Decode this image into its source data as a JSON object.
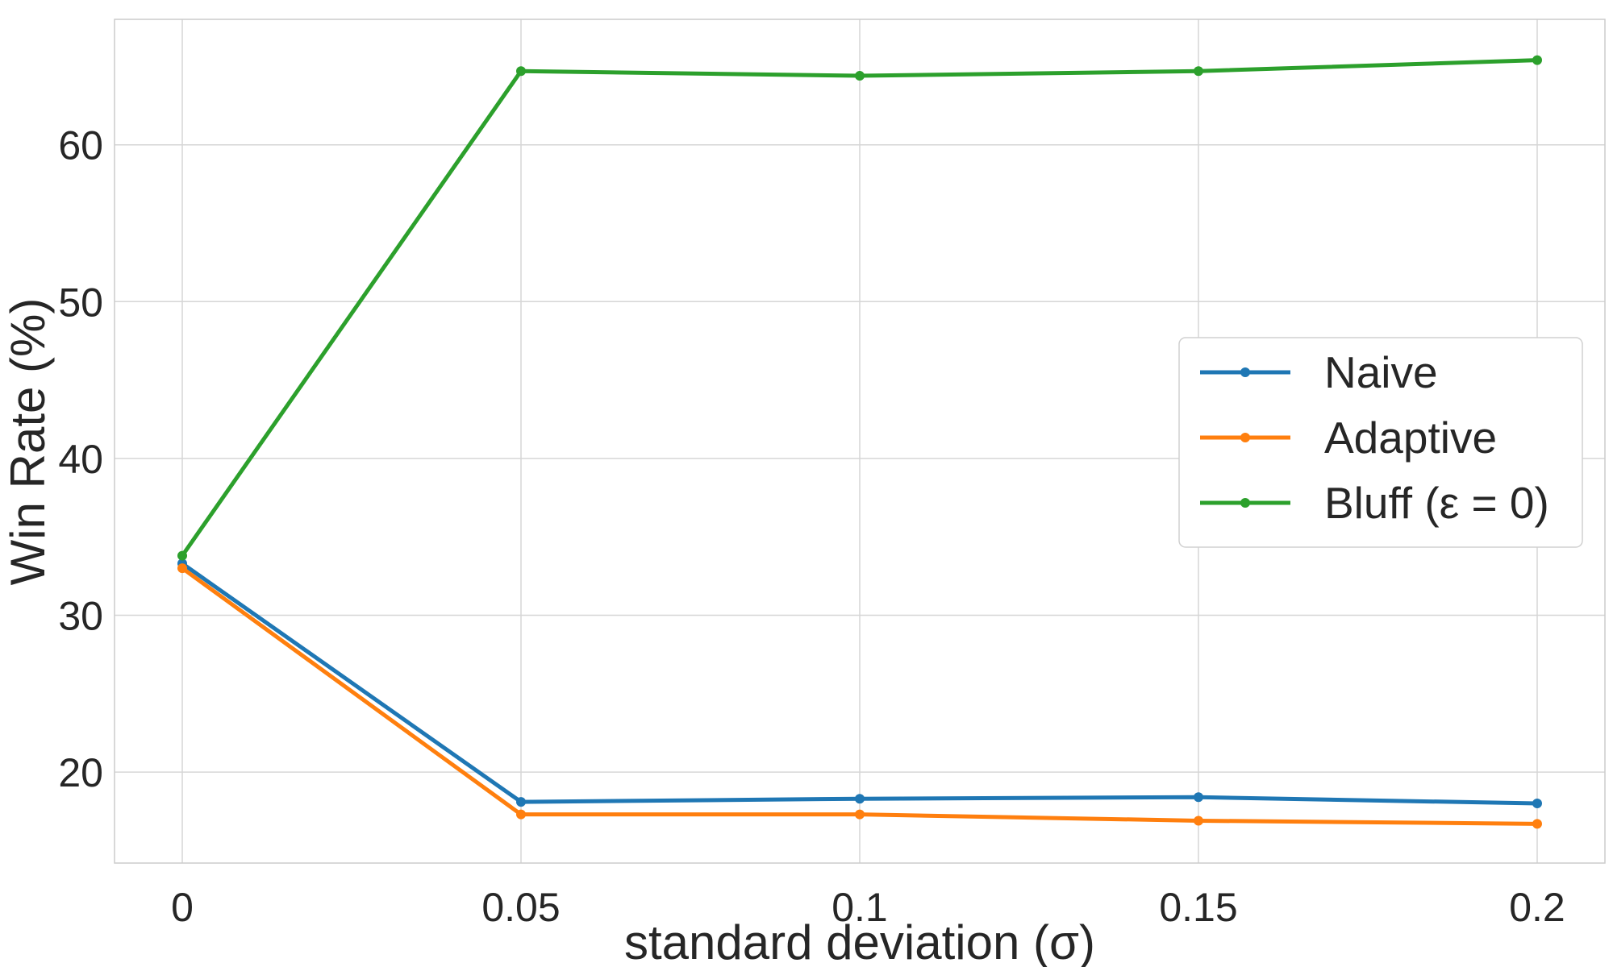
{
  "chart_data": {
    "type": "line",
    "x": [
      0,
      0.05,
      0.1,
      0.15,
      0.2
    ],
    "x_tick_labels": [
      "0",
      "0.05",
      "0.1",
      "0.15",
      "0.2"
    ],
    "y_ticks": [
      20,
      30,
      40,
      50,
      60
    ],
    "xlim": [
      -0.01,
      0.21
    ],
    "ylim": [
      14.2,
      68.0
    ],
    "xlabel": "standard deviation (σ)",
    "ylabel": "Win Rate (%)",
    "grid": true,
    "legend_position": "center-right",
    "series": [
      {
        "name": "Naive",
        "color": "#1f77b4",
        "values": [
          33.3,
          18.1,
          18.3,
          18.4,
          18.0
        ]
      },
      {
        "name": "Adaptive",
        "color": "#ff7f0e",
        "values": [
          33.0,
          17.3,
          17.3,
          16.9,
          16.7
        ]
      },
      {
        "name": "Bluff (ε = 0)",
        "color": "#2ca02c",
        "values": [
          33.8,
          64.7,
          64.4,
          64.7,
          65.4
        ]
      }
    ]
  }
}
